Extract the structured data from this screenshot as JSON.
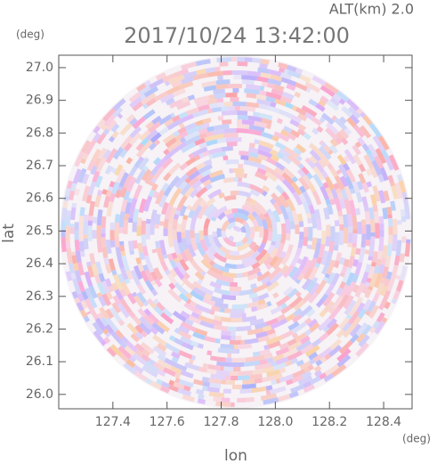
{
  "chart_data": {
    "type": "radar-ppi",
    "title": "2017/10/24 13:42:00",
    "subtitle": "ALT(km) 2.0",
    "xlabel": "lon",
    "ylabel": "lat",
    "xunit": "(deg)",
    "yunit": "(deg)",
    "xlim": [
      127.2,
      128.505
    ],
    "ylim": [
      25.956,
      27.038
    ],
    "xticks": [
      127.4,
      127.6,
      127.8,
      {
        "value": 128,
        "label": "128.0"
      },
      128.2,
      128.4
    ],
    "yticks": [
      {
        "value": 26,
        "label": "26.0"
      },
      26.1,
      26.2,
      26.3,
      26.4,
      26.5,
      26.6,
      26.7,
      26.8,
      26.9,
      {
        "value": 27,
        "label": "27.0"
      }
    ]
  }
}
